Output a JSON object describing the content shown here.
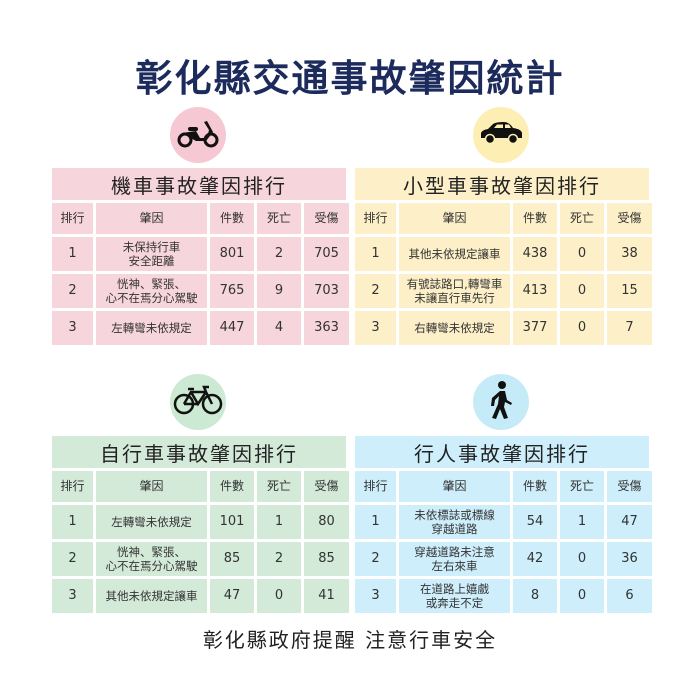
{
  "title": "彰化縣交通事故肇因統計",
  "columns": [
    "排行",
    "肇因",
    "件數",
    "死亡",
    "受傷"
  ],
  "panels": [
    {
      "id": "motorcycle",
      "icon": "motorcycle-icon",
      "title": "機車事故肇因排行",
      "colors": {
        "band": "#f6d5dc",
        "circle": "#f5c8d3"
      },
      "rows": [
        {
          "rank": "1",
          "cause": "未保持行車\n安全距離",
          "count": "801",
          "deaths": "2",
          "injuries": "705"
        },
        {
          "rank": "2",
          "cause": "恍神、緊張、\n心不在焉分心駕駛",
          "count": "765",
          "deaths": "9",
          "injuries": "703"
        },
        {
          "rank": "3",
          "cause": "左轉彎未依規定",
          "count": "447",
          "deaths": "4",
          "injuries": "363"
        }
      ]
    },
    {
      "id": "car",
      "icon": "car-icon",
      "title": "小型車事故肇因排行",
      "colors": {
        "band": "#fdf0c8",
        "circle": "#fdeeb3"
      },
      "rows": [
        {
          "rank": "1",
          "cause": "其他未依規定讓車",
          "count": "438",
          "deaths": "0",
          "injuries": "38"
        },
        {
          "rank": "2",
          "cause": "有號誌路口,轉彎車\n未讓直行車先行",
          "count": "413",
          "deaths": "0",
          "injuries": "15"
        },
        {
          "rank": "3",
          "cause": "右轉彎未依規定",
          "count": "377",
          "deaths": "0",
          "injuries": "7"
        }
      ]
    },
    {
      "id": "bicycle",
      "icon": "bicycle-icon",
      "title": "自行車事故肇因排行",
      "colors": {
        "band": "#d3ead8",
        "circle": "#cbe9d3"
      },
      "rows": [
        {
          "rank": "1",
          "cause": "左轉彎未依規定",
          "count": "101",
          "deaths": "1",
          "injuries": "80"
        },
        {
          "rank": "2",
          "cause": "恍神、緊張、\n心不在焉分心駕駛",
          "count": "85",
          "deaths": "2",
          "injuries": "85"
        },
        {
          "rank": "3",
          "cause": "其他未依規定讓車",
          "count": "47",
          "deaths": "0",
          "injuries": "41"
        }
      ]
    },
    {
      "id": "pedestrian",
      "icon": "pedestrian-icon",
      "title": "行人事故肇因排行",
      "colors": {
        "band": "#cdeefa",
        "circle": "#c6ebf8"
      },
      "rows": [
        {
          "rank": "1",
          "cause": "未依標誌或標線\n穿越道路",
          "count": "54",
          "deaths": "1",
          "injuries": "47"
        },
        {
          "rank": "2",
          "cause": "穿越道路未注意\n左右來車",
          "count": "42",
          "deaths": "0",
          "injuries": "36"
        },
        {
          "rank": "3",
          "cause": "在道路上嬉戲\n或奔走不定",
          "count": "8",
          "deaths": "0",
          "injuries": "6"
        }
      ]
    }
  ],
  "footer": "彰化縣政府提醒 注意行車安全"
}
